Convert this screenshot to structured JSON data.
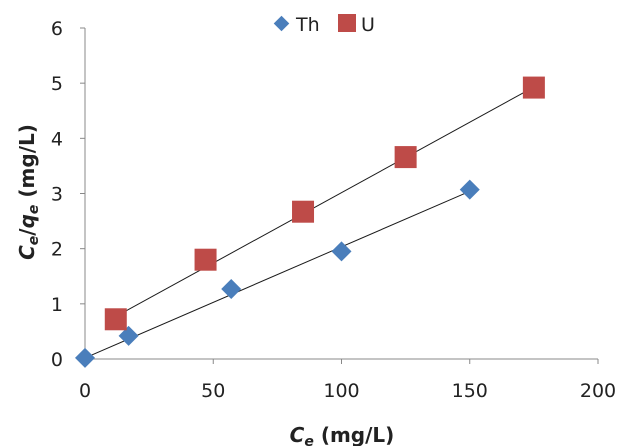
{
  "chart_data": {
    "type": "scatter",
    "xlabel": {
      "main": "C",
      "sub": "e",
      "rest": " (mg/L)"
    },
    "ylabel": {
      "a": "C",
      "a_sub": "e",
      "slash": "/",
      "b": "q",
      "b_sub": "e",
      "rest": " (mg/L)"
    },
    "xlim": [
      0,
      200
    ],
    "ylim": [
      0,
      6
    ],
    "xticks": [
      "0",
      "50",
      "100",
      "150",
      "200"
    ],
    "yticks": [
      "0",
      "1",
      "2",
      "3",
      "4",
      "5",
      "6"
    ],
    "grid": false,
    "legend_position": "top-center",
    "series": [
      {
        "name": "Th",
        "marker": "diamond",
        "color": "#4a7ebb",
        "x": [
          0,
          17,
          57,
          100,
          150
        ],
        "y": [
          0.02,
          0.42,
          1.27,
          1.95,
          3.07
        ],
        "trendline": {
          "x": [
            0,
            150
          ],
          "y": [
            0.02,
            3.04
          ]
        }
      },
      {
        "name": "U",
        "marker": "square",
        "color": "#be4b48",
        "x": [
          12,
          47,
          85,
          125,
          175
        ],
        "y": [
          0.72,
          1.8,
          2.67,
          3.66,
          4.92
        ],
        "trendline": {
          "x": [
            12,
            175
          ],
          "y": [
            0.77,
            4.93
          ]
        }
      }
    ]
  }
}
